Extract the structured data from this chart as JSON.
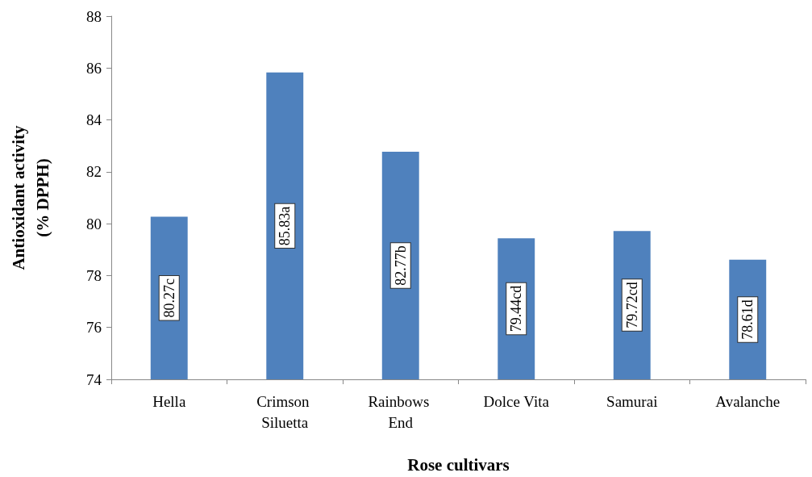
{
  "chart_data": {
    "type": "bar",
    "xlabel": "Rose cultivars",
    "ylabel": "Antioxidant activity\n(% DPPH)",
    "categories": [
      "Hella",
      "Crimson Siluetta",
      "Rainbows End",
      "Dolce Vita",
      "Samurai",
      "Avalanche"
    ],
    "values": [
      80.27,
      85.83,
      82.77,
      79.44,
      79.72,
      78.61
    ],
    "value_labels": [
      "80.27c",
      "85.83a",
      "82.77b",
      "79.44cd",
      "79.72cd",
      "78.61d"
    ],
    "color": "#4f81bd",
    "ylim": [
      74,
      88
    ],
    "yticks": [
      74,
      76,
      78,
      80,
      82,
      84,
      86,
      88
    ]
  }
}
